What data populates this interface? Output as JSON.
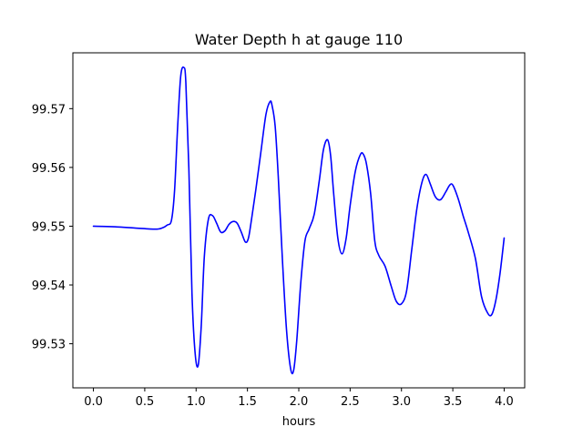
{
  "chart_data": {
    "type": "line",
    "title": "Water Depth h at gauge 110",
    "xlabel": "hours",
    "ylabel": "",
    "xlim": [
      -0.2,
      4.2
    ],
    "ylim": [
      99.5225,
      99.5795
    ],
    "xticks": [
      0.0,
      0.5,
      1.0,
      1.5,
      2.0,
      2.5,
      3.0,
      3.5,
      4.0
    ],
    "xtick_labels": [
      "0.0",
      "0.5",
      "1.0",
      "1.5",
      "2.0",
      "2.5",
      "3.0",
      "3.5",
      "4.0"
    ],
    "yticks": [
      99.53,
      99.54,
      99.55,
      99.56,
      99.57
    ],
    "ytick_labels": [
      "99.53",
      "99.54",
      "99.55",
      "99.56",
      "99.57"
    ],
    "grid": false,
    "legend": "none",
    "series": [
      {
        "color": "#0000ff",
        "x": [
          0.0,
          0.2,
          0.4,
          0.6,
          0.67,
          0.72,
          0.76,
          0.79,
          0.82,
          0.85,
          0.88,
          0.9,
          0.93,
          0.96,
          0.99,
          1.02,
          1.05,
          1.08,
          1.12,
          1.16,
          1.2,
          1.24,
          1.28,
          1.32,
          1.36,
          1.4,
          1.44,
          1.48,
          1.51,
          1.54,
          1.58,
          1.63,
          1.68,
          1.72,
          1.74,
          1.77,
          1.8,
          1.84,
          1.88,
          1.92,
          1.95,
          1.98,
          2.02,
          2.06,
          2.1,
          2.15,
          2.2,
          2.24,
          2.28,
          2.31,
          2.34,
          2.38,
          2.42,
          2.46,
          2.5,
          2.55,
          2.6,
          2.63,
          2.66,
          2.7,
          2.74,
          2.78,
          2.84,
          2.9,
          2.95,
          3.0,
          3.05,
          3.1,
          3.15,
          3.2,
          3.24,
          3.28,
          3.33,
          3.38,
          3.43,
          3.47,
          3.5,
          3.55,
          3.6,
          3.65,
          3.72,
          3.78,
          3.84,
          3.88,
          3.92,
          3.96,
          4.0
        ],
        "y": [
          99.55,
          99.5499,
          99.5497,
          99.5495,
          99.5497,
          99.5502,
          99.551,
          99.556,
          99.5668,
          99.5755,
          99.577,
          99.5745,
          99.5595,
          99.5385,
          99.5285,
          99.5263,
          99.533,
          99.5448,
          99.5512,
          99.5518,
          99.5505,
          99.549,
          99.5492,
          99.5503,
          99.5508,
          99.5505,
          99.549,
          99.5473,
          99.548,
          99.5512,
          99.556,
          99.5625,
          99.569,
          99.5712,
          99.5705,
          99.567,
          99.5585,
          99.5445,
          99.5325,
          99.5258,
          99.5255,
          99.5305,
          99.5405,
          99.5475,
          99.5495,
          99.552,
          99.5578,
          99.563,
          99.5647,
          99.562,
          99.5555,
          99.548,
          99.5453,
          99.5478,
          99.5535,
          99.5593,
          99.5622,
          99.5622,
          99.5605,
          99.5555,
          99.5475,
          99.545,
          99.5432,
          99.5398,
          99.5372,
          99.5368,
          99.539,
          99.546,
          99.553,
          99.5575,
          99.5588,
          99.5572,
          99.555,
          99.5545,
          99.5558,
          99.557,
          99.557,
          99.5548,
          99.5518,
          99.549,
          99.5445,
          99.538,
          99.5352,
          99.535,
          99.5375,
          99.542,
          99.548
        ]
      }
    ]
  }
}
